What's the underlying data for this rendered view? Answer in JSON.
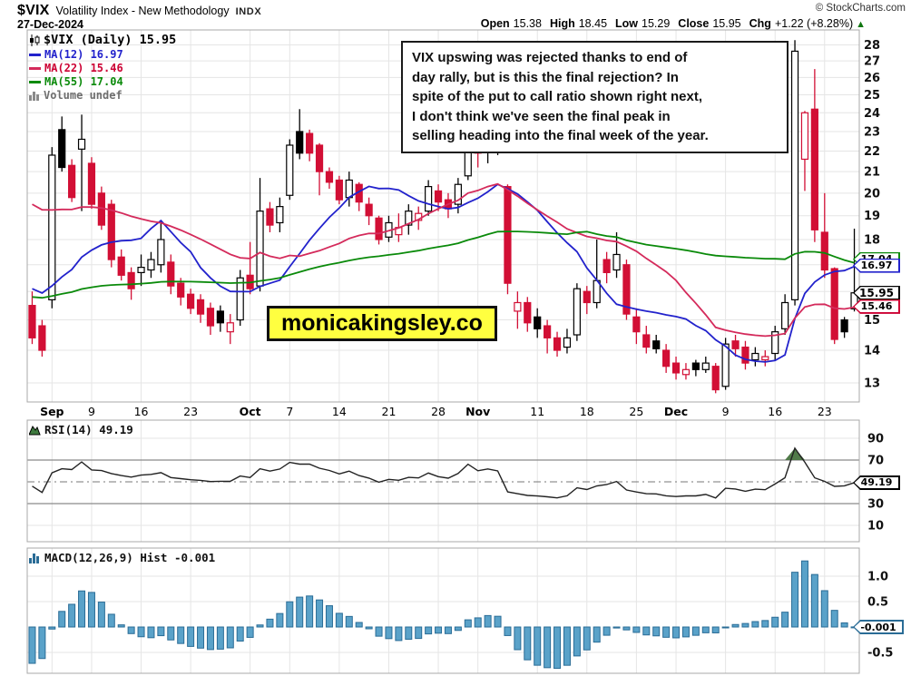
{
  "header": {
    "symbol": "$VIX",
    "title": "Volatility Index - New Methodology",
    "exchange": "INDX",
    "date": "27-Dec-2024",
    "copyright": "© StockCharts.com",
    "quote": [
      {
        "label": "Open",
        "value": "15.38"
      },
      {
        "label": "High",
        "value": "18.45"
      },
      {
        "label": "Low",
        "value": "15.29"
      },
      {
        "label": "Close",
        "value": "15.95"
      },
      {
        "label": "Chg",
        "value": "+1.22 (+8.28%)"
      }
    ],
    "direction_arrow": "▲"
  },
  "legend": {
    "main": "$VIX (Daily) 15.95",
    "ma12": "MA(12) 16.97",
    "ma22": "MA(22) 15.46",
    "ma55": "MA(55) 17.04",
    "volume": "Volume undef"
  },
  "annotation": {
    "text": "VIX upswing was rejected thanks to end of\nday rally, but is this the final rejection? In\nspite of the put to call ratio shown right next,\nI don't think we've seen the final peak in\nselling heading into the final week of the year."
  },
  "watermark": "monicakingsley.co",
  "rsi_label": "RSI(14) 49.19",
  "macd_label": "MACD(12,26,9) Hist -0.001",
  "colors": {
    "candle_up": "#000000",
    "candle_down": "#d20f35",
    "ma12": "#2222cc",
    "ma22": "#d42a5b",
    "ma55": "#0a8a0a",
    "macd_bar_fill": "#5aa2c9",
    "macd_bar_stroke": "#2a6c96",
    "rsi_line": "#222222",
    "rsi_fill": "#48743f",
    "grid": "#e5e5e5",
    "hline_strong": "#8a8a8a",
    "panel_border": "#a8a8a8",
    "watermark_bg": "#ffff40",
    "accent_green": "#117711"
  },
  "chart_data": {
    "type": "candlestick",
    "symbol": "$VIX",
    "timeframe": "Daily",
    "ohlc_last": {
      "open": 15.38,
      "high": 18.45,
      "low": 15.29,
      "close": 15.95,
      "chg": "+1.22 (+8.28%)"
    },
    "price_axis": {
      "scale": "log",
      "ticks": [
        13,
        14,
        15,
        16,
        17,
        18,
        19,
        20,
        21,
        22,
        23,
        24,
        25,
        26,
        27,
        28
      ]
    },
    "x_ticks": [
      {
        "i": 2,
        "t": "Sep",
        "m": true
      },
      {
        "i": 6,
        "t": "9"
      },
      {
        "i": 11,
        "t": "16"
      },
      {
        "i": 16,
        "t": "23"
      },
      {
        "i": 22,
        "t": "Oct",
        "m": true
      },
      {
        "i": 26,
        "t": "7"
      },
      {
        "i": 31,
        "t": "14"
      },
      {
        "i": 36,
        "t": "21"
      },
      {
        "i": 41,
        "t": "28"
      },
      {
        "i": 45,
        "t": "Nov",
        "m": true
      },
      {
        "i": 51,
        "t": "11"
      },
      {
        "i": 56,
        "t": "18"
      },
      {
        "i": 61,
        "t": "25"
      },
      {
        "i": 65,
        "t": "Dec",
        "m": true
      },
      {
        "i": 70,
        "t": "9"
      },
      {
        "i": 75,
        "t": "16"
      },
      {
        "i": 80,
        "t": "23"
      }
    ],
    "candles": {
      "columns": [
        "open",
        "high",
        "low",
        "close",
        "style"
      ],
      "style_key": {
        "w": "hollow-up",
        "b": "black-filled",
        "r": "red-filled",
        "rw": "red-hollow"
      },
      "rows": [
        [
          15.5,
          16.0,
          14.2,
          14.4,
          "r"
        ],
        [
          14.8,
          15.0,
          13.8,
          14.0,
          "r"
        ],
        [
          15.7,
          22.2,
          15.4,
          21.8,
          "w"
        ],
        [
          23.1,
          23.8,
          21.0,
          21.2,
          "b"
        ],
        [
          21.3,
          21.6,
          19.6,
          19.8,
          "r"
        ],
        [
          22.1,
          23.9,
          19.2,
          22.6,
          "w"
        ],
        [
          21.4,
          21.7,
          19.3,
          19.5,
          "r"
        ],
        [
          20.0,
          20.3,
          18.4,
          18.6,
          "r"
        ],
        [
          19.5,
          19.7,
          16.9,
          17.2,
          "r"
        ],
        [
          17.3,
          17.6,
          16.4,
          16.6,
          "r"
        ],
        [
          16.7,
          16.9,
          15.7,
          16.1,
          "r"
        ],
        [
          16.7,
          17.4,
          16.2,
          16.9,
          "w"
        ],
        [
          16.8,
          17.5,
          16.5,
          17.2,
          "w"
        ],
        [
          17.0,
          18.8,
          16.7,
          18.0,
          "w"
        ],
        [
          17.1,
          17.4,
          15.9,
          16.2,
          "r"
        ],
        [
          16.3,
          16.5,
          15.5,
          15.8,
          "r"
        ],
        [
          15.9,
          16.1,
          15.2,
          15.4,
          "r"
        ],
        [
          15.7,
          15.9,
          14.9,
          15.2,
          "r"
        ],
        [
          15.4,
          15.6,
          14.5,
          14.8,
          "r"
        ],
        [
          15.3,
          15.5,
          14.6,
          14.9,
          "b"
        ],
        [
          14.6,
          15.2,
          14.2,
          14.9,
          "rw"
        ],
        [
          15.0,
          16.8,
          14.8,
          16.5,
          "w"
        ],
        [
          16.6,
          17.9,
          15.9,
          16.1,
          "r"
        ],
        [
          16.2,
          20.7,
          16.0,
          19.2,
          "w"
        ],
        [
          19.3,
          19.6,
          18.3,
          18.6,
          "r"
        ],
        [
          18.7,
          19.8,
          18.3,
          19.4,
          "w"
        ],
        [
          19.9,
          22.6,
          19.7,
          22.3,
          "w"
        ],
        [
          23.0,
          24.2,
          21.6,
          21.9,
          "b"
        ],
        [
          22.9,
          23.1,
          21.5,
          21.9,
          "r"
        ],
        [
          22.3,
          22.4,
          19.9,
          21.0,
          "r"
        ],
        [
          21.0,
          21.2,
          20.2,
          20.5,
          "r"
        ],
        [
          20.6,
          20.8,
          19.5,
          19.7,
          "r"
        ],
        [
          19.8,
          21.0,
          19.4,
          20.6,
          "w"
        ],
        [
          20.4,
          20.5,
          19.2,
          19.6,
          "r"
        ],
        [
          19.5,
          19.8,
          18.6,
          19.0,
          "r"
        ],
        [
          18.9,
          19.0,
          17.8,
          18.0,
          "r"
        ],
        [
          18.1,
          19.0,
          17.9,
          18.7,
          "w"
        ],
        [
          18.2,
          19.1,
          17.9,
          18.5,
          "rw"
        ],
        [
          18.6,
          19.5,
          18.2,
          19.2,
          "w"
        ],
        [
          18.8,
          19.4,
          18.4,
          19.1,
          "rw"
        ],
        [
          19.2,
          20.6,
          19.0,
          20.3,
          "w"
        ],
        [
          20.1,
          20.4,
          19.2,
          19.6,
          "r"
        ],
        [
          19.7,
          20.0,
          18.9,
          19.3,
          "r"
        ],
        [
          19.5,
          20.7,
          19.1,
          20.4,
          "w"
        ],
        [
          20.8,
          23.4,
          20.6,
          23.2,
          "w"
        ],
        [
          23.1,
          23.4,
          21.2,
          21.9,
          "r"
        ],
        [
          22.0,
          22.8,
          21.4,
          22.5,
          "w"
        ],
        [
          22.6,
          22.9,
          21.8,
          22.1,
          "b"
        ],
        [
          20.3,
          20.4,
          15.9,
          16.3,
          "r"
        ],
        [
          15.3,
          16.0,
          14.7,
          15.6,
          "rw"
        ],
        [
          15.6,
          15.8,
          14.6,
          14.9,
          "r"
        ],
        [
          15.1,
          15.4,
          14.4,
          14.7,
          "b"
        ],
        [
          14.8,
          15.0,
          13.9,
          14.4,
          "r"
        ],
        [
          14.4,
          14.6,
          13.8,
          14.0,
          "r"
        ],
        [
          14.1,
          14.7,
          13.9,
          14.4,
          "w"
        ],
        [
          14.5,
          16.3,
          14.3,
          16.1,
          "w"
        ],
        [
          16.0,
          16.2,
          15.2,
          15.6,
          "r"
        ],
        [
          15.6,
          18.0,
          15.4,
          16.4,
          "w"
        ],
        [
          17.2,
          17.5,
          16.3,
          16.7,
          "r"
        ],
        [
          16.8,
          18.3,
          16.5,
          17.4,
          "w"
        ],
        [
          17.0,
          17.2,
          15.0,
          15.2,
          "r"
        ],
        [
          15.1,
          15.4,
          14.2,
          14.6,
          "r"
        ],
        [
          14.5,
          14.8,
          13.9,
          14.1,
          "r"
        ],
        [
          14.3,
          14.5,
          13.9,
          14.05,
          "b"
        ],
        [
          14.0,
          14.2,
          13.3,
          13.5,
          "r"
        ],
        [
          13.6,
          13.8,
          13.1,
          13.3,
          "r"
        ],
        [
          13.25,
          13.6,
          13.1,
          13.4,
          "rw"
        ],
        [
          13.6,
          13.7,
          13.2,
          13.4,
          "b"
        ],
        [
          13.4,
          13.8,
          13.3,
          13.6,
          "w"
        ],
        [
          13.5,
          13.6,
          12.7,
          12.8,
          "r"
        ],
        [
          12.9,
          14.4,
          12.8,
          14.2,
          "w"
        ],
        [
          14.3,
          14.5,
          13.8,
          14.05,
          "r"
        ],
        [
          14.1,
          14.3,
          13.4,
          13.6,
          "r"
        ],
        [
          13.7,
          14.1,
          13.5,
          13.9,
          "w"
        ],
        [
          13.7,
          14.0,
          13.5,
          13.8,
          "rw"
        ],
        [
          13.9,
          14.8,
          13.7,
          14.6,
          "w"
        ],
        [
          14.7,
          15.9,
          14.5,
          15.6,
          "w"
        ],
        [
          15.7,
          28.3,
          15.5,
          27.6,
          "w"
        ],
        [
          21.6,
          24.1,
          20.1,
          24.0,
          "rw"
        ],
        [
          24.2,
          26.5,
          17.9,
          18.4,
          "r"
        ],
        [
          18.3,
          20.0,
          16.5,
          16.8,
          "r"
        ],
        [
          16.85,
          16.9,
          14.2,
          14.35,
          "r"
        ],
        [
          15.0,
          15.1,
          14.4,
          14.6,
          "b"
        ],
        [
          15.38,
          18.45,
          15.29,
          15.95,
          "w"
        ]
      ]
    },
    "moving_averages": [
      {
        "period": 12,
        "label": "MA(12)",
        "last": 16.97,
        "color_ref": "ma12",
        "left_edge_value": 16.1
      },
      {
        "period": 22,
        "label": "MA(22)",
        "last": 15.46,
        "color_ref": "ma22",
        "left_edge_value": 19.5
      },
      {
        "period": 55,
        "label": "MA(55)",
        "last": 17.04,
        "color_ref": "ma55",
        "left_edge_value": 15.8
      }
    ],
    "price_tags": [
      {
        "value": 17.04,
        "text": "17.04",
        "color": "#0a8a0a",
        "hidden_behind_next": true
      },
      {
        "value": 16.97,
        "text": "16.97",
        "color": "#2222cc"
      },
      {
        "value": 15.95,
        "text": "15.95",
        "color": "#000000",
        "bold": true
      },
      {
        "value": 15.46,
        "text": "15.46",
        "color": "#cc0033"
      }
    ],
    "rsi": {
      "type": "line",
      "period": 14,
      "last": 49.19,
      "tag": "49.19",
      "overbought": 70,
      "oversold": 30,
      "midline": 50,
      "axis_labels": [
        90,
        70,
        30,
        10
      ],
      "left_edge_value": 46,
      "peak": 81
    },
    "macd": {
      "type": "histogram",
      "params": "12,26,9",
      "last_hist": -0.001,
      "tag": "-0.001",
      "axis_labels": [
        "1.0",
        "0.5",
        "-0.5"
      ],
      "axis_values": [
        1.0,
        0.5,
        -0.5
      ],
      "peak": 1.3,
      "left_edge_value": -0.75
    }
  }
}
